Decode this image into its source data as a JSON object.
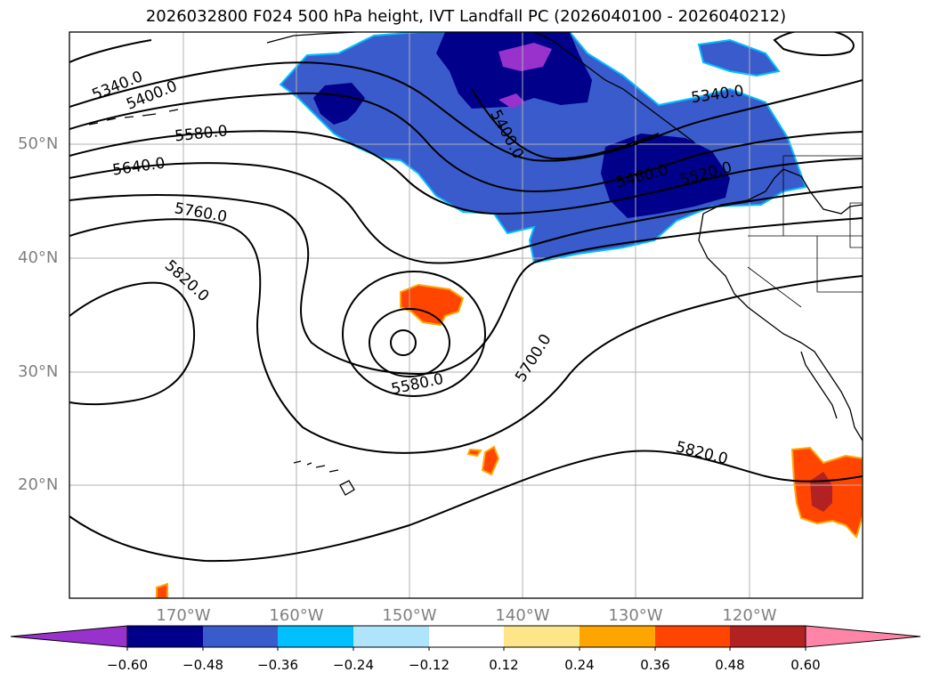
{
  "title": "2026032800 F024 500 hPa height, IVT Landfall PC (2026040100 - 2026040212)",
  "lat_labels": [
    "50°N",
    "40°N",
    "30°N",
    "20°N"
  ],
  "lon_labels": [
    "170°W",
    "160°W",
    "150°W",
    "140°W",
    "130°W",
    "120°W"
  ],
  "contour_labels": [
    "5340.0",
    "5400.0",
    "5580.0",
    "5640.0",
    "5760.0",
    "5820.0",
    "5400.0",
    "5340.0",
    "5460.0",
    "5520.0",
    "5700.0",
    "5580.0",
    "5820.0"
  ],
  "colorbar": {
    "ticks": [
      "−0.60",
      "−0.48",
      "−0.36",
      "−0.24",
      "−0.12",
      "0.12",
      "0.24",
      "0.36",
      "0.48",
      "0.60"
    ],
    "colors": [
      "#9932cc",
      "#00008b",
      "#3a5bcc",
      "#00bfff",
      "#aee4fc",
      "#ffffff",
      "#fde68a",
      "#ffa500",
      "#ff4500",
      "#b22222",
      "#ff85a8"
    ]
  },
  "colors": {
    "height_contours": "#000000",
    "coastline": "#000000",
    "gridlines": "#b0b0b0"
  }
}
